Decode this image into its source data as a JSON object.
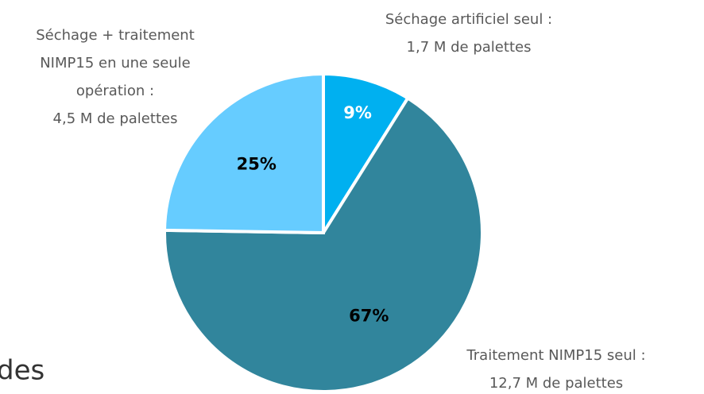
{
  "chart_data": {
    "type": "pie",
    "labels": [
      [
        "Séchage artificiel seul :",
        "1,7 M de palettes"
      ],
      [
        "Traitement NIMP15 seul :",
        "12,7 M de palettes"
      ],
      [
        "Séchage + traitement",
        "NIMP15 en une seule",
        "opération :",
        "4,5 M de palettes"
      ]
    ],
    "values": [
      9,
      67,
      25
    ],
    "value_labels": [
      "9%",
      "67%",
      "25%"
    ],
    "colors": [
      "#00b0f0",
      "#31859c",
      "#66ccff"
    ],
    "value_label_colors": [
      "#ffffff",
      "#000000",
      "#000000"
    ],
    "annotations": [
      "des"
    ]
  }
}
